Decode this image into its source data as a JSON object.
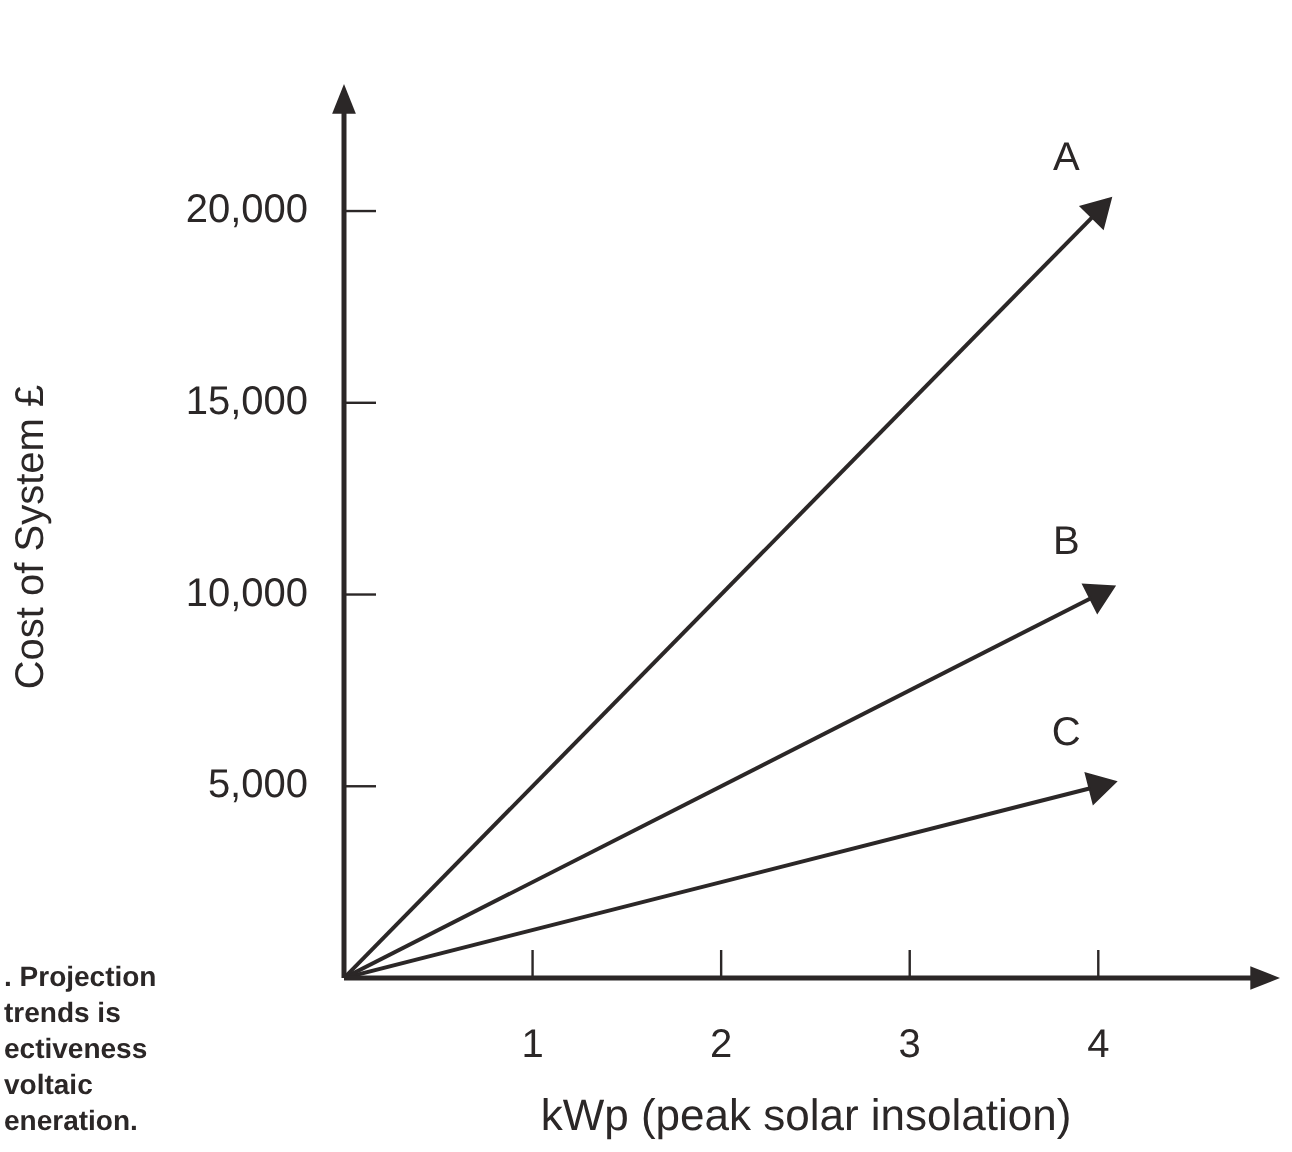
{
  "chart_data": {
    "type": "line",
    "xlabel": "kWp (peak solar insolation)",
    "ylabel": "Cost of System £",
    "x": [
      0,
      4
    ],
    "series": [
      {
        "name": "A",
        "color": "#2b2727",
        "values": [
          0,
          20000
        ]
      },
      {
        "name": "B",
        "color": "#2b2727",
        "values": [
          0,
          10000
        ]
      },
      {
        "name": "C",
        "color": "#2b2727",
        "values": [
          0,
          5000
        ]
      }
    ],
    "xlim": [
      0,
      4.9
    ],
    "ylim": [
      0,
      23000
    ],
    "xticks": [
      1,
      2,
      3,
      4
    ],
    "yticks": [
      {
        "value": 5000,
        "label": "5,000"
      },
      {
        "value": 10000,
        "label": "10,000"
      },
      {
        "value": 15000,
        "label": "15,000"
      },
      {
        "value": 20000,
        "label": "20,000"
      }
    ],
    "grid": false,
    "legend": false,
    "line_style": "solid",
    "annotations": [
      ". Projection\ntrends is\nectiveness\nvoltaic\neneration."
    ]
  }
}
